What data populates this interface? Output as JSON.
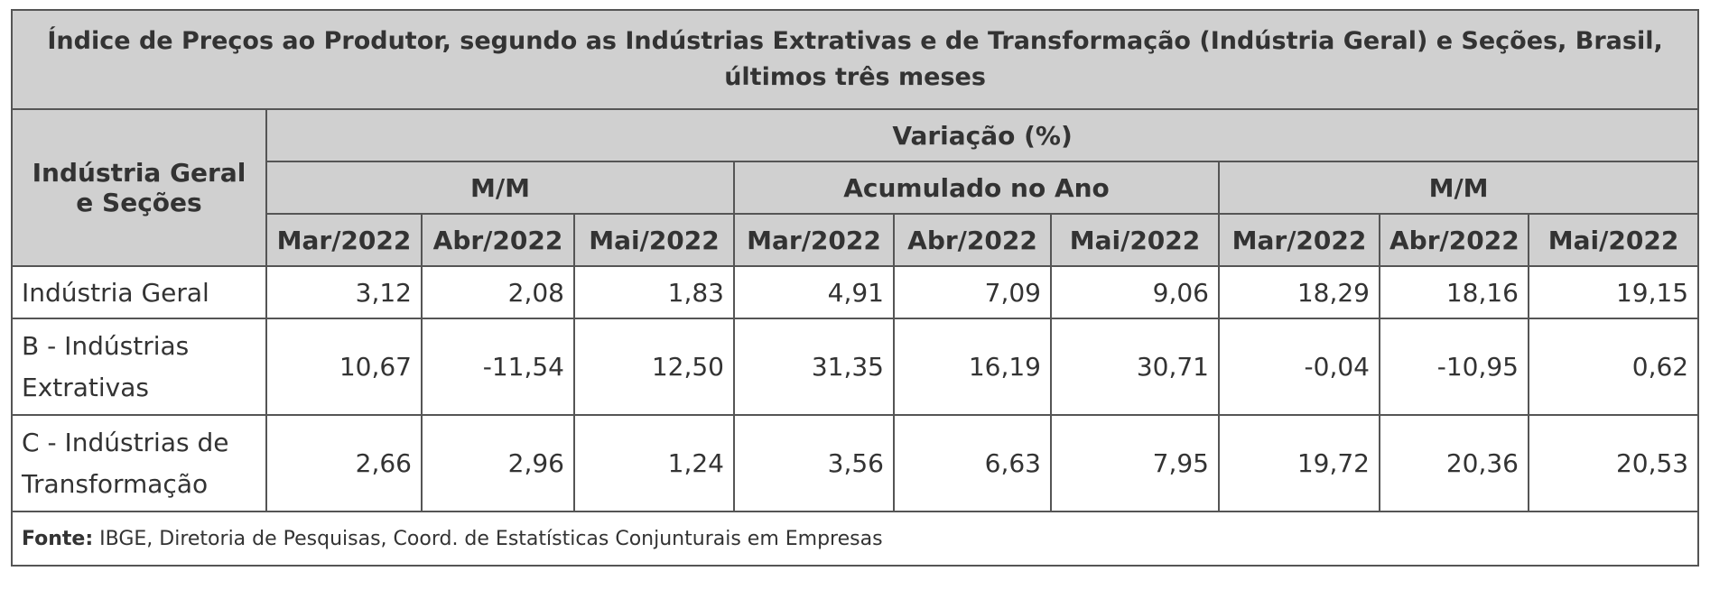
{
  "table": {
    "title": "Índice de Preços ao Produtor, segundo as Indústrias Extrativas e de Transformação (Indústria Geral) e Seções, Brasil, últimos três meses",
    "row_header": "Indústria Geral e Seções",
    "group_header": "Variação (%)",
    "groups": [
      "M/M",
      "Acumulado no Ano",
      "M/M"
    ],
    "columns": [
      "Mar/2022",
      "Abr/2022",
      "Mai/2022",
      "Mar/2022",
      "Abr/2022",
      "Mai/2022",
      "Mar/2022",
      "Abr/2022",
      "Mai/2022"
    ],
    "rows": [
      {
        "label": "Indústria Geral",
        "values": [
          "3,12",
          "2,08",
          "1,83",
          "4,91",
          "7,09",
          "9,06",
          "18,29",
          "18,16",
          "19,15"
        ]
      },
      {
        "label": "B - Indústrias Extrativas",
        "values": [
          "10,67",
          "-11,54",
          "12,50",
          "31,35",
          "16,19",
          "30,71",
          "-0,04",
          "-10,95",
          "0,62"
        ]
      },
      {
        "label": "C - Indústrias de Transformação",
        "values": [
          "2,66",
          "2,96",
          "1,24",
          "3,56",
          "6,63",
          "7,95",
          "19,72",
          "20,36",
          "20,53"
        ]
      }
    ],
    "source": {
      "label": "Fonte:",
      "text": "IBGE, Diretoria de Pesquisas, Coord. de Estatísticas Conjunturais em Empresas"
    }
  }
}
